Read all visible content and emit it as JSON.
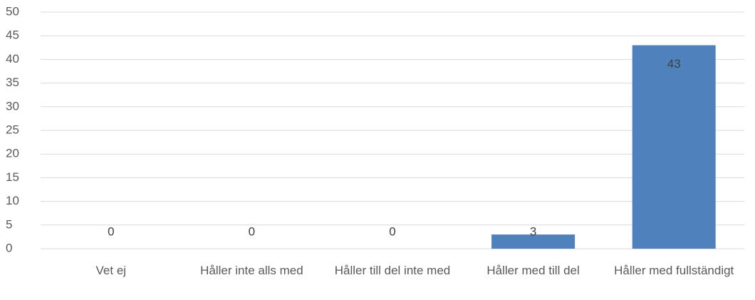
{
  "chart_data": {
    "type": "bar",
    "categories": [
      "Vet ej",
      "Håller inte alls med",
      "Håller till del inte med",
      "Håller med till del",
      "Håller med fullständigt"
    ],
    "values": [
      0,
      0,
      0,
      3,
      43
    ],
    "color": "#4f81bd",
    "ylim": [
      0,
      50
    ],
    "yticks": [
      0,
      5,
      10,
      15,
      20,
      25,
      30,
      35,
      40,
      45,
      50
    ],
    "grid": true
  }
}
